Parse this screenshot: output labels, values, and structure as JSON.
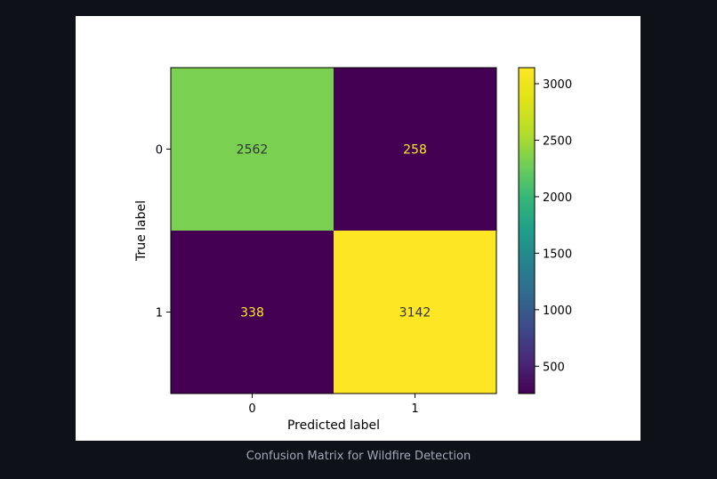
{
  "caption": "Confusion Matrix for Wildfire Detection",
  "chart_data": {
    "type": "heatmap",
    "title": "",
    "xlabel": "Predicted label",
    "ylabel": "True label",
    "x_categories": [
      "0",
      "1"
    ],
    "y_categories": [
      "0",
      "1"
    ],
    "matrix": [
      [
        2562,
        258
      ],
      [
        338,
        3142
      ]
    ],
    "colormap": "viridis",
    "colorbar": {
      "range": [
        258,
        3142
      ],
      "ticks": [
        500,
        1000,
        1500,
        2000,
        2500,
        3000
      ]
    },
    "cell_colors": [
      [
        "#7ad151",
        "#440154"
      ],
      [
        "#440154",
        "#fde725"
      ]
    ],
    "text_colors": [
      [
        "#333333",
        "#fde725"
      ],
      [
        "#fde725",
        "#333333"
      ]
    ]
  }
}
